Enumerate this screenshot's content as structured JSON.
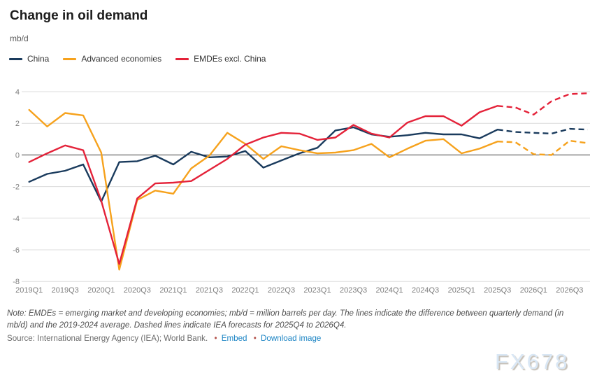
{
  "header": {
    "title": "Change in oil demand",
    "unit": "mb/d"
  },
  "chart_data": {
    "type": "line",
    "x": [
      "2019Q1",
      "2019Q2",
      "2019Q3",
      "2019Q4",
      "2020Q1",
      "2020Q2",
      "2020Q3",
      "2020Q4",
      "2021Q1",
      "2021Q2",
      "2021Q3",
      "2021Q4",
      "2022Q1",
      "2022Q2",
      "2022Q3",
      "2022Q4",
      "2023Q1",
      "2023Q2",
      "2023Q3",
      "2023Q4",
      "2024Q1",
      "2024Q2",
      "2024Q3",
      "2024Q4",
      "2025Q1",
      "2025Q2",
      "2025Q3",
      "2025Q4",
      "2026Q1",
      "2026Q2",
      "2026Q3",
      "2026Q4"
    ],
    "x_tick_every": 2,
    "series": [
      {
        "id": "china",
        "name": "China",
        "color": "#1a3b5d",
        "values": [
          -1.7,
          -1.2,
          -1.0,
          -0.6,
          -2.95,
          -0.45,
          -0.4,
          -0.05,
          -0.6,
          0.2,
          -0.15,
          -0.1,
          0.25,
          -0.8,
          -0.35,
          0.1,
          0.45,
          1.55,
          1.75,
          1.3,
          1.15,
          1.25,
          1.4,
          1.3,
          1.3,
          1.05,
          1.6,
          1.45,
          1.4,
          1.35,
          1.65,
          1.6
        ]
      },
      {
        "id": "advanced-economies",
        "name": "Advanced economies",
        "color": "#f6a21d",
        "values": [
          2.85,
          1.8,
          2.65,
          2.5,
          0.15,
          -7.25,
          -2.85,
          -2.25,
          -2.45,
          -0.85,
          -0.05,
          1.4,
          0.7,
          -0.25,
          0.55,
          0.3,
          0.1,
          0.15,
          0.3,
          0.7,
          -0.15,
          0.4,
          0.9,
          1.0,
          0.1,
          0.4,
          0.85,
          0.8,
          0.05,
          0.0,
          0.9,
          0.75
        ]
      },
      {
        "id": "emdes-excl-china",
        "name": "EMDEs excl. China",
        "color": "#e42239",
        "values": [
          -0.45,
          0.1,
          0.6,
          0.3,
          -2.9,
          -6.9,
          -2.75,
          -1.8,
          -1.75,
          -1.65,
          -0.95,
          -0.25,
          0.65,
          1.1,
          1.4,
          1.35,
          0.95,
          1.1,
          1.9,
          1.35,
          1.1,
          2.05,
          2.45,
          2.45,
          1.85,
          2.7,
          3.1,
          3.0,
          2.55,
          3.4,
          3.85,
          3.9
        ]
      }
    ],
    "forecast_start_index": 26,
    "forecast_note": "Dashed lines indicate IEA forecasts for 2025Q4 to 2026Q4",
    "ylim": [
      -8,
      4
    ],
    "y_ticks": [
      4,
      2,
      0,
      -2,
      -4,
      -6,
      -8
    ],
    "grid": true,
    "grid_color": "#dcdcdc",
    "zero_line_color": "#3f3f3f",
    "legend_position": "top-left",
    "title": "Change in oil demand",
    "ylabel": "mb/d",
    "xlabel": ""
  },
  "footer": {
    "note": "Note: EMDEs = emerging market and developing economies; mb/d = million barrels per day. The lines indicate the difference between quarterly demand (in mb/d) and the 2019-2024 average. Dashed lines indicate IEA forecasts for 2025Q4 to 2026Q4.",
    "source_text": "Source: International Energy Agency (IEA); World Bank.",
    "bullet": "•",
    "links": [
      {
        "label": "Embed"
      },
      {
        "label": "Download image"
      }
    ]
  },
  "watermark": "FX678"
}
